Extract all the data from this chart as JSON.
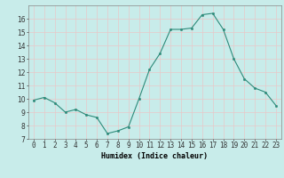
{
  "x": [
    0,
    1,
    2,
    3,
    4,
    5,
    6,
    7,
    8,
    9,
    10,
    11,
    12,
    13,
    14,
    15,
    16,
    17,
    18,
    19,
    20,
    21,
    22,
    23
  ],
  "y": [
    9.9,
    10.1,
    9.7,
    9.0,
    9.2,
    8.8,
    8.6,
    7.4,
    7.6,
    7.9,
    10.0,
    12.2,
    13.4,
    15.2,
    15.2,
    15.3,
    16.3,
    16.4,
    15.2,
    13.0,
    11.5,
    10.8,
    10.5,
    9.5
  ],
  "line_color": "#2d8b7a",
  "marker_color": "#2d8b7a",
  "bg_color": "#c8ecea",
  "grid_color": "#e8c8c8",
  "xlabel": "Humidex (Indice chaleur)",
  "xlim": [
    -0.5,
    23.5
  ],
  "ylim": [
    7,
    17
  ],
  "yticks": [
    7,
    8,
    9,
    10,
    11,
    12,
    13,
    14,
    15,
    16
  ],
  "xtick_labels": [
    "0",
    "1",
    "2",
    "3",
    "4",
    "5",
    "6",
    "7",
    "8",
    "9",
    "10",
    "11",
    "12",
    "13",
    "14",
    "15",
    "16",
    "17",
    "18",
    "19",
    "20",
    "21",
    "22",
    "23"
  ],
  "axis_fontsize": 6,
  "tick_fontsize": 5.5,
  "linewidth": 0.8,
  "markersize": 1.8
}
